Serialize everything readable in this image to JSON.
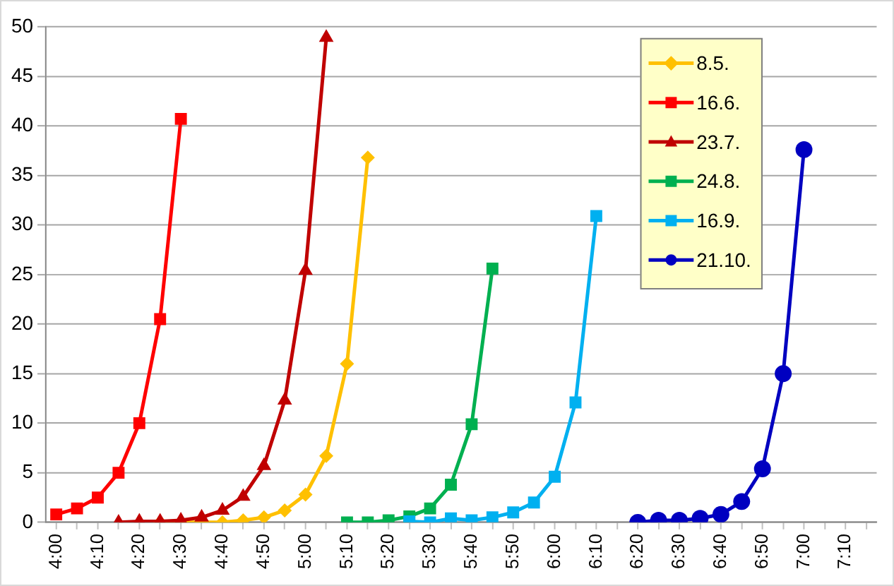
{
  "chart_data": {
    "type": "line",
    "categories": [
      "4:00",
      null,
      "4:10",
      null,
      "4:20",
      null,
      "4:30",
      null,
      "4:40",
      null,
      "4:50",
      null,
      "5:00",
      null,
      "5:10",
      null,
      "5:20",
      null,
      "5:30",
      null,
      "5:40",
      null,
      "5:50",
      null,
      "6:00",
      null,
      "6:10",
      null,
      "6:20",
      null,
      "6:30",
      null,
      "6:40",
      null,
      "6:50",
      null,
      "7:00",
      null,
      "7:10",
      null
    ],
    "series": [
      {
        "name": "8.5.",
        "color": "#ffc000",
        "marker": "diamond",
        "values": [
          null,
          null,
          null,
          null,
          null,
          0,
          0,
          0,
          0,
          0.2,
          0.5,
          1.2,
          2.8,
          6.7,
          16,
          36.8,
          null,
          null,
          null,
          null,
          null,
          null,
          null,
          null,
          null,
          null,
          null,
          null,
          null,
          null,
          null,
          null,
          null,
          null,
          null,
          null,
          null,
          null,
          null,
          null
        ]
      },
      {
        "name": "16.6.",
        "color": "#ff0000",
        "marker": "square",
        "values": [
          0.8,
          1.4,
          2.5,
          5,
          10,
          20.5,
          40.7,
          null,
          null,
          null,
          null,
          null,
          null,
          null,
          null,
          null,
          null,
          null,
          null,
          null,
          null,
          null,
          null,
          null,
          null,
          null,
          null,
          null,
          null,
          null,
          null,
          null,
          null,
          null,
          null,
          null,
          null,
          null,
          null,
          null
        ]
      },
      {
        "name": "23.7.",
        "color": "#c00000",
        "marker": "triangle",
        "values": [
          null,
          null,
          null,
          0,
          0.1,
          0.1,
          0.2,
          0.5,
          1.2,
          2.6,
          5.7,
          12.3,
          25.4,
          48.9,
          null,
          null,
          null,
          null,
          null,
          null,
          null,
          null,
          null,
          null,
          null,
          null,
          null,
          null,
          null,
          null,
          null,
          null,
          null,
          null,
          null,
          null,
          null,
          null,
          null,
          null
        ]
      },
      {
        "name": "24.8.",
        "color": "#00b050",
        "marker": "square",
        "values": [
          null,
          null,
          null,
          null,
          null,
          null,
          null,
          null,
          null,
          null,
          null,
          null,
          null,
          null,
          0,
          0,
          0.2,
          0.6,
          1.4,
          3.8,
          9.9,
          25.6,
          null,
          null,
          null,
          null,
          null,
          null,
          null,
          null,
          null,
          null,
          null,
          null,
          null,
          null,
          null,
          null,
          null,
          null
        ]
      },
      {
        "name": "16.9.",
        "color": "#00b0f0",
        "marker": "square",
        "values": [
          null,
          null,
          null,
          null,
          null,
          null,
          null,
          null,
          null,
          null,
          null,
          null,
          null,
          null,
          null,
          null,
          null,
          0.1,
          0,
          0.4,
          0.2,
          0.5,
          1,
          2,
          4.6,
          12.1,
          30.9,
          null,
          null,
          null,
          null,
          null,
          null,
          null,
          null,
          null,
          null,
          null,
          null,
          null
        ]
      },
      {
        "name": "21.10.",
        "color": "#0000c0",
        "marker": "circle",
        "values": [
          null,
          null,
          null,
          null,
          null,
          null,
          null,
          null,
          null,
          null,
          null,
          null,
          null,
          null,
          null,
          null,
          null,
          null,
          null,
          null,
          null,
          null,
          null,
          null,
          null,
          null,
          null,
          null,
          0,
          0.2,
          0.2,
          0.4,
          0.8,
          2.1,
          5.4,
          15,
          37.6,
          null,
          null,
          null
        ]
      }
    ],
    "ylim": [
      0,
      50
    ],
    "yticks": [
      0,
      5,
      10,
      15,
      20,
      25,
      30,
      35,
      40,
      45,
      50
    ],
    "grid": "y",
    "legend": "top right",
    "line_style": "solid"
  }
}
